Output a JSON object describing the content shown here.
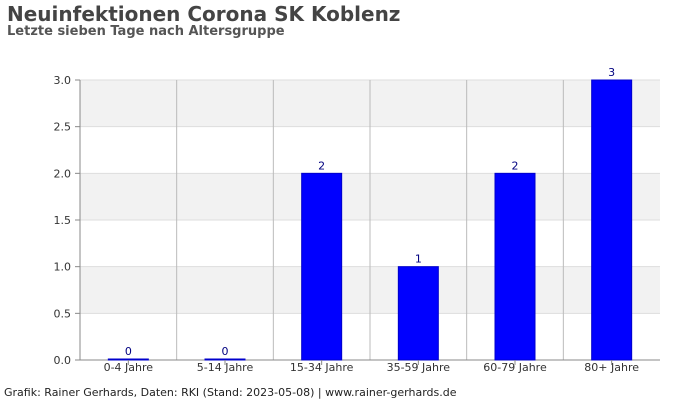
{
  "title": "Neuinfektionen Corona SK Koblenz",
  "subtitle": "Letzte sieben Tage nach Altersgruppe",
  "footer": "Grafik: Rainer Gerhards, Daten: RKI (Stand: 2023-05-08) | www.rainer-gerhards.de",
  "colors": {
    "bar": "#0000ff",
    "bar_stroke": "#0000cc",
    "data_label": "#000080",
    "band": "#f2f2f2",
    "gridline": "#dddddd",
    "vgridline": "#bbbbbb"
  },
  "chart_data": {
    "type": "bar",
    "categories": [
      "0-4 Jahre",
      "5-14 Jahre",
      "15-34 Jahre",
      "35-59 Jahre",
      "60-79 Jahre",
      "80+ Jahre"
    ],
    "values": [
      0,
      0,
      2,
      1,
      2,
      3
    ],
    "data_labels": [
      "0",
      "0",
      "2",
      "1",
      "2",
      "3"
    ],
    "ylim": [
      0,
      3
    ],
    "yticks": [
      "0.0",
      "0.5",
      "1.0",
      "1.5",
      "2.0",
      "2.5",
      "3.0"
    ],
    "ytick_values": [
      0,
      0.5,
      1,
      1.5,
      2,
      2.5,
      3
    ],
    "grid": true,
    "legend": false
  }
}
